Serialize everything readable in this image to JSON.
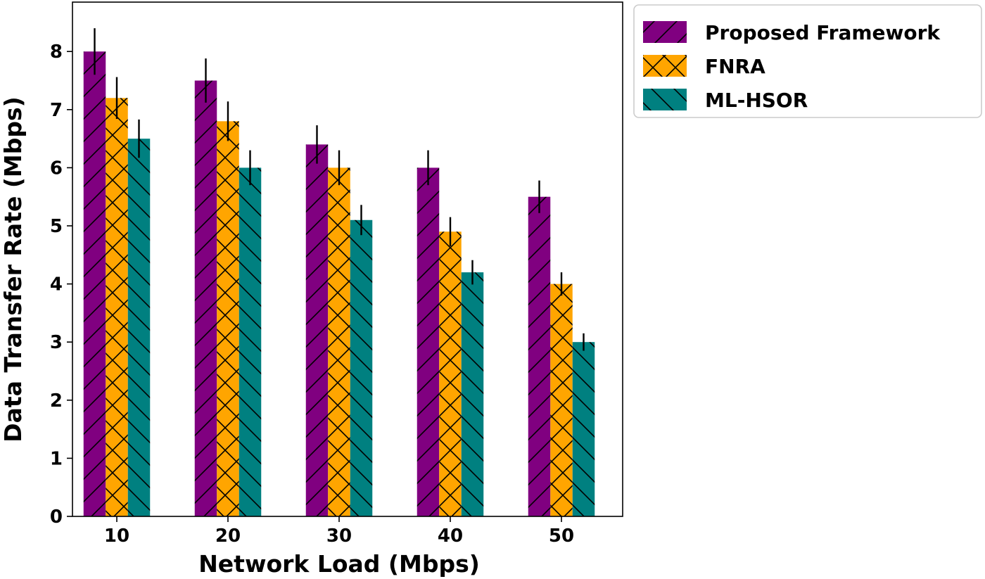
{
  "chart_data": {
    "type": "bar",
    "title": "",
    "xlabel": "Network Load (Mbps)",
    "ylabel": "Data Transfer Rate (Mbps)",
    "categories": [
      "10",
      "20",
      "30",
      "40",
      "50"
    ],
    "yticks": [
      "0",
      "1",
      "2",
      "3",
      "4",
      "5",
      "6",
      "7",
      "8"
    ],
    "ylim": [
      0,
      8.85
    ],
    "grid": false,
    "legend_position": "outside-top-right",
    "series": [
      {
        "name": "Proposed Framework",
        "color": "#800080",
        "hatch": "forward-diagonal",
        "values": [
          8.0,
          7.5,
          6.4,
          6.0,
          5.5
        ],
        "errors": [
          0.4,
          0.38,
          0.33,
          0.3,
          0.28
        ]
      },
      {
        "name": "FNRA",
        "color": "#FFA500",
        "hatch": "crosshatch",
        "values": [
          7.2,
          6.8,
          6.0,
          4.9,
          4.0
        ],
        "errors": [
          0.36,
          0.34,
          0.3,
          0.25,
          0.2
        ]
      },
      {
        "name": "ML-HSOR",
        "color": "#008080",
        "hatch": "back-diagonal",
        "values": [
          6.5,
          6.0,
          5.1,
          4.2,
          3.0
        ],
        "errors": [
          0.33,
          0.3,
          0.26,
          0.21,
          0.15
        ]
      }
    ]
  }
}
